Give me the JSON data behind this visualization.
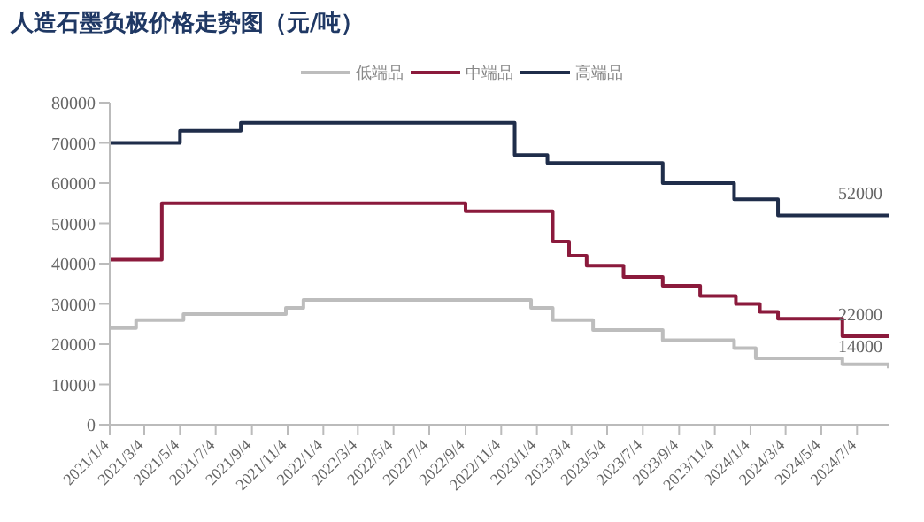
{
  "chart_data": {
    "type": "step",
    "title": "人造石墨负极价格走势图（元/吨）",
    "legend": "top",
    "grid": false,
    "marker": "none",
    "line_style": "solid",
    "xlim": [
      "2021-01-04",
      "2024-08-27"
    ],
    "xticks": [
      {
        "value": "2021-01-04",
        "label": "2021/1/4"
      },
      {
        "value": "2021-03-04",
        "label": "2021/3/4"
      },
      {
        "value": "2021-05-04",
        "label": "2021/5/4"
      },
      {
        "value": "2021-07-04",
        "label": "2021/7/4"
      },
      {
        "value": "2021-09-04",
        "label": "2021/9/4"
      },
      {
        "value": "2021-11-04",
        "label": "2021/11/4"
      },
      {
        "value": "2022-01-04",
        "label": "2022/1/4"
      },
      {
        "value": "2022-03-04",
        "label": "2022/3/4"
      },
      {
        "value": "2022-05-04",
        "label": "2022/5/4"
      },
      {
        "value": "2022-07-04",
        "label": "2022/7/4"
      },
      {
        "value": "2022-09-04",
        "label": "2022/9/4"
      },
      {
        "value": "2022-11-04",
        "label": "2022/11/4"
      },
      {
        "value": "2023-01-04",
        "label": "2023/1/4"
      },
      {
        "value": "2023-03-04",
        "label": "2023/3/4"
      },
      {
        "value": "2023-05-04",
        "label": "2023/5/4"
      },
      {
        "value": "2023-07-04",
        "label": "2023/7/4"
      },
      {
        "value": "2023-09-04",
        "label": "2023/9/4"
      },
      {
        "value": "2023-11-04",
        "label": "2023/11/4"
      },
      {
        "value": "2024-01-04",
        "label": "2024/1/4"
      },
      {
        "value": "2024-03-04",
        "label": "2024/3/4"
      },
      {
        "value": "2024-05-04",
        "label": "2024/5/4"
      },
      {
        "value": "2024-07-04",
        "label": "2024/7/4"
      }
    ],
    "ylim": [
      0,
      80000
    ],
    "yticks": [
      0,
      10000,
      20000,
      30000,
      40000,
      50000,
      60000,
      70000,
      80000
    ],
    "series": [
      {
        "name": "低端品",
        "color": "#bdbdbd",
        "x": [
          "2021-01-04",
          "2021-02-18",
          "2021-05-10",
          "2021-11-01",
          "2021-12-01",
          "2022-12-25",
          "2023-01-31",
          "2023-04-10",
          "2023-08-07",
          "2023-12-07",
          "2024-01-13",
          "2024-06-09",
          "2024-08-27"
        ],
        "values": [
          24000,
          26000,
          27500,
          29000,
          31000,
          29000,
          26000,
          23500,
          21000,
          19000,
          16500,
          15000,
          14000
        ]
      },
      {
        "name": "中端品",
        "color": "#8b1a3c",
        "x": [
          "2021-01-04",
          "2021-04-03",
          "2022-09-04",
          "2023-01-31",
          "2023-02-28",
          "2023-03-30",
          "2023-06-01",
          "2023-08-07",
          "2023-10-10",
          "2023-12-10",
          "2024-01-20",
          "2024-02-20",
          "2024-06-09",
          "2024-08-27"
        ],
        "values": [
          41000,
          55000,
          53000,
          45500,
          42000,
          39500,
          36700,
          34500,
          32000,
          30000,
          28000,
          26300,
          22000,
          22000
        ]
      },
      {
        "name": "高端品",
        "color": "#1f2d4a",
        "x": [
          "2021-01-04",
          "2021-05-04",
          "2021-08-16",
          "2022-11-27",
          "2023-01-22",
          "2023-08-07",
          "2023-12-07",
          "2024-02-20",
          "2024-08-27"
        ],
        "values": [
          70000,
          73000,
          75000,
          67000,
          65000,
          60000,
          56000,
          52000,
          52000
        ]
      }
    ],
    "annotations": [
      {
        "text": "52000",
        "x": "2024-08-27",
        "y": 52000
      },
      {
        "text": "22000",
        "x": "2024-08-27",
        "y": 22000
      },
      {
        "text": "14000",
        "x": "2024-08-27",
        "y": 14000
      }
    ]
  }
}
